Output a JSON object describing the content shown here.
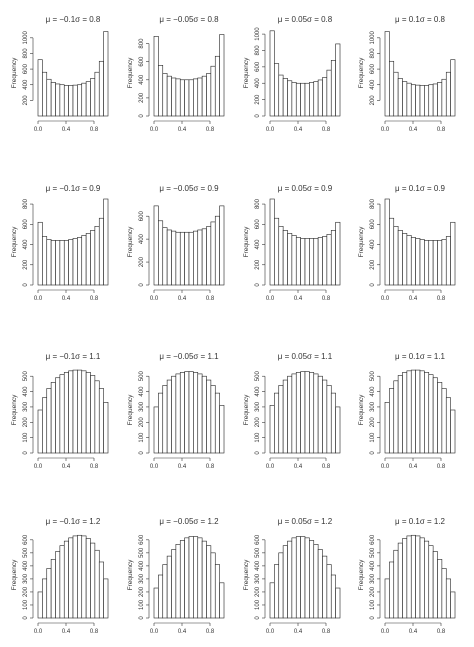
{
  "chart_data": [
    {
      "type": "bar",
      "title": "μ = −0.1σ = 0.8",
      "ylabel": "Frequency",
      "xticks": [
        "0.0",
        "0.4",
        "0.8"
      ],
      "yticks": [
        "200",
        "400",
        "600",
        "800",
        "1000"
      ],
      "ylim": [
        0,
        1100
      ],
      "values": [
        720,
        560,
        470,
        430,
        410,
        400,
        390,
        390,
        395,
        400,
        420,
        440,
        480,
        560,
        700,
        1080
      ]
    },
    {
      "type": "bar",
      "title": "μ = −0.05σ = 0.8",
      "ylabel": "Frequency",
      "xticks": [
        "0.0",
        "0.4",
        "0.8"
      ],
      "yticks": [
        "0",
        "200",
        "400",
        "600",
        "800"
      ],
      "ylim": [
        0,
        950
      ],
      "values": [
        880,
        560,
        470,
        440,
        420,
        410,
        400,
        400,
        400,
        410,
        420,
        440,
        470,
        550,
        660,
        900
      ]
    },
    {
      "type": "bar",
      "title": "μ = 0.05σ = 0.8",
      "ylabel": "Frequency",
      "xticks": [
        "0.0",
        "0.4",
        "0.8"
      ],
      "yticks": [
        "0",
        "200",
        "400",
        "600",
        "800",
        "1000"
      ],
      "ylim": [
        0,
        1050
      ],
      "values": [
        1040,
        640,
        500,
        460,
        430,
        410,
        400,
        400,
        400,
        410,
        420,
        440,
        470,
        560,
        680,
        880
      ]
    },
    {
      "type": "bar",
      "title": "μ = 0.1σ = 0.8",
      "ylabel": "Frequency",
      "xticks": [
        "0.0",
        "0.4",
        "0.8"
      ],
      "yticks": [
        "200",
        "400",
        "600",
        "800",
        "1000"
      ],
      "ylim": [
        0,
        1100
      ],
      "values": [
        1080,
        700,
        560,
        480,
        440,
        420,
        400,
        395,
        390,
        390,
        400,
        410,
        430,
        470,
        560,
        720
      ]
    },
    {
      "type": "bar",
      "title": "μ = −0.1σ = 0.9",
      "ylabel": "Frequency",
      "xticks": [
        "0.0",
        "0.4",
        "0.8"
      ],
      "yticks": [
        "0",
        "200",
        "400",
        "600",
        "800"
      ],
      "ylim": [
        0,
        850
      ],
      "values": [
        620,
        480,
        450,
        440,
        440,
        440,
        440,
        450,
        460,
        470,
        490,
        510,
        540,
        580,
        660,
        850
      ]
    },
    {
      "type": "bar",
      "title": "μ = −0.05σ = 0.9",
      "ylabel": "Frequency",
      "xticks": [
        "0.0",
        "0.4",
        "0.8"
      ],
      "yticks": [
        "0",
        "200",
        "400",
        "600"
      ],
      "ylim": [
        0,
        750
      ],
      "values": [
        690,
        560,
        500,
        480,
        470,
        460,
        460,
        460,
        460,
        470,
        480,
        490,
        510,
        550,
        600,
        690
      ]
    },
    {
      "type": "bar",
      "title": "μ = 0.05σ = 0.9",
      "ylabel": "Frequency",
      "xticks": [
        "0.0",
        "0.4",
        "0.8"
      ],
      "yticks": [
        "0",
        "200",
        "400",
        "600",
        "800"
      ],
      "ylim": [
        0,
        850
      ],
      "values": [
        850,
        660,
        580,
        540,
        510,
        490,
        470,
        460,
        460,
        460,
        460,
        470,
        480,
        500,
        540,
        620
      ]
    },
    {
      "type": "bar",
      "title": "μ = 0.1σ = 0.9",
      "ylabel": "Frequency",
      "xticks": [
        "0.0",
        "0.4",
        "0.8"
      ],
      "yticks": [
        "0",
        "200",
        "400",
        "600",
        "800"
      ],
      "ylim": [
        0,
        850
      ],
      "values": [
        850,
        660,
        580,
        540,
        510,
        490,
        470,
        460,
        450,
        440,
        440,
        440,
        440,
        450,
        480,
        620
      ]
    },
    {
      "type": "bar",
      "title": "μ = −0.1σ = 1.1",
      "ylabel": "Frequency",
      "xticks": [
        "0.0",
        "0.4",
        "0.8"
      ],
      "yticks": [
        "0",
        "100",
        "200",
        "300",
        "400",
        "500"
      ],
      "ylim": [
        0,
        560
      ],
      "values": [
        280,
        360,
        420,
        460,
        490,
        510,
        525,
        535,
        540,
        540,
        535,
        525,
        505,
        470,
        420,
        330
      ]
    },
    {
      "type": "bar",
      "title": "μ = −0.05σ = 1.1",
      "ylabel": "Frequency",
      "xticks": [
        "0.0",
        "0.4",
        "0.8"
      ],
      "yticks": [
        "0",
        "100",
        "200",
        "300",
        "400",
        "500"
      ],
      "ylim": [
        0,
        560
      ],
      "values": [
        300,
        390,
        440,
        475,
        500,
        515,
        525,
        530,
        530,
        525,
        515,
        500,
        475,
        440,
        390,
        310
      ]
    },
    {
      "type": "bar",
      "title": "μ = 0.05σ = 1.1",
      "ylabel": "Frequency",
      "xticks": [
        "0.0",
        "0.4",
        "0.8"
      ],
      "yticks": [
        "0",
        "100",
        "200",
        "300",
        "400",
        "500"
      ],
      "ylim": [
        0,
        560
      ],
      "values": [
        310,
        390,
        440,
        475,
        500,
        515,
        525,
        530,
        530,
        525,
        515,
        500,
        475,
        440,
        390,
        300
      ]
    },
    {
      "type": "bar",
      "title": "μ = 0.1σ = 1.1",
      "ylabel": "Frequency",
      "xticks": [
        "0.0",
        "0.4",
        "0.8"
      ],
      "yticks": [
        "0",
        "100",
        "200",
        "300",
        "400",
        "500"
      ],
      "ylim": [
        0,
        560
      ],
      "values": [
        330,
        420,
        470,
        505,
        525,
        535,
        540,
        540,
        535,
        525,
        510,
        490,
        460,
        420,
        360,
        280
      ]
    },
    {
      "type": "bar",
      "title": "μ = −0.1σ = 1.2",
      "ylabel": "Frequency",
      "xticks": [
        "0.0",
        "0.4",
        "0.8"
      ],
      "yticks": [
        "0",
        "100",
        "200",
        "300",
        "400",
        "500",
        "600"
      ],
      "ylim": [
        0,
        660
      ],
      "values": [
        200,
        300,
        380,
        450,
        510,
        555,
        590,
        615,
        630,
        635,
        630,
        610,
        575,
        520,
        430,
        300
      ]
    },
    {
      "type": "bar",
      "title": "μ = −0.05σ = 1.2",
      "ylabel": "Frequency",
      "xticks": [
        "0.0",
        "0.4",
        "0.8"
      ],
      "yticks": [
        "0",
        "100",
        "200",
        "300",
        "400",
        "500",
        "600"
      ],
      "ylim": [
        0,
        660
      ],
      "values": [
        230,
        330,
        410,
        475,
        525,
        565,
        595,
        615,
        625,
        625,
        615,
        590,
        555,
        500,
        410,
        270
      ]
    },
    {
      "type": "bar",
      "title": "μ = 0.05σ = 1.2",
      "ylabel": "Frequency",
      "xticks": [
        "0.0",
        "0.4",
        "0.8"
      ],
      "yticks": [
        "0",
        "100",
        "200",
        "300",
        "400",
        "500",
        "600"
      ],
      "ylim": [
        0,
        660
      ],
      "values": [
        270,
        410,
        500,
        555,
        590,
        615,
        625,
        625,
        615,
        595,
        565,
        525,
        475,
        410,
        330,
        230
      ]
    },
    {
      "type": "bar",
      "title": "μ = 0.1σ = 1.2",
      "ylabel": "Frequency",
      "xticks": [
        "0.0",
        "0.4",
        "0.8"
      ],
      "yticks": [
        "0",
        "100",
        "200",
        "300",
        "400",
        "500",
        "600"
      ],
      "ylim": [
        0,
        660
      ],
      "values": [
        300,
        430,
        520,
        575,
        610,
        630,
        635,
        630,
        615,
        590,
        555,
        510,
        450,
        380,
        300,
        200
      ]
    }
  ]
}
